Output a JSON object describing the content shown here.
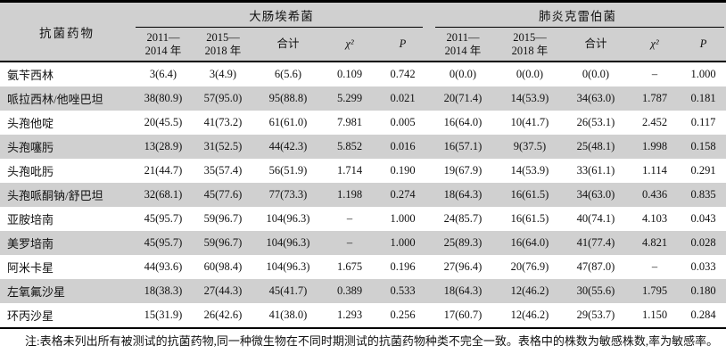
{
  "colors": {
    "stripe": "#d0d0d0",
    "border": "#000000",
    "background": "#ffffff"
  },
  "table": {
    "drug_header": "抗菌药物",
    "groups": [
      {
        "label": "大肠埃希菌"
      },
      {
        "label": "肺炎克雷伯菌"
      }
    ],
    "period_headers": [
      {
        "line1": "2011—",
        "line2": "2014 年"
      },
      {
        "line1": "2015—",
        "line2": "2018 年"
      }
    ],
    "total_header": "合计",
    "chi_header": "χ²",
    "p_header": "P",
    "rows": [
      {
        "drug": "氨苄西林",
        "ecoli": [
          "3(6.4)",
          "3(4.9)",
          "6(5.6)",
          "0.109",
          "0.742"
        ],
        "kp": [
          "0(0.0)",
          "0(0.0)",
          "0(0.0)",
          "–",
          "1.000"
        ]
      },
      {
        "drug": "哌拉西林/他唑巴坦",
        "ecoli": [
          "38(80.9)",
          "57(95.0)",
          "95(88.8)",
          "5.299",
          "0.021"
        ],
        "kp": [
          "20(71.4)",
          "14(53.9)",
          "34(63.0)",
          "1.787",
          "0.181"
        ]
      },
      {
        "drug": "头孢他啶",
        "ecoli": [
          "20(45.5)",
          "41(73.2)",
          "61(61.0)",
          "7.981",
          "0.005"
        ],
        "kp": [
          "16(64.0)",
          "10(41.7)",
          "26(53.1)",
          "2.452",
          "0.117"
        ]
      },
      {
        "drug": "头孢噻肟",
        "ecoli": [
          "13(28.9)",
          "31(52.5)",
          "44(42.3)",
          "5.852",
          "0.016"
        ],
        "kp": [
          "16(57.1)",
          "9(37.5)",
          "25(48.1)",
          "1.998",
          "0.158"
        ]
      },
      {
        "drug": "头孢吡肟",
        "ecoli": [
          "21(44.7)",
          "35(57.4)",
          "56(51.9)",
          "1.714",
          "0.190"
        ],
        "kp": [
          "19(67.9)",
          "14(53.9)",
          "33(61.1)",
          "1.114",
          "0.291"
        ]
      },
      {
        "drug": "头孢哌酮钠/舒巴坦",
        "ecoli": [
          "32(68.1)",
          "45(77.6)",
          "77(73.3)",
          "1.198",
          "0.274"
        ],
        "kp": [
          "18(64.3)",
          "16(61.5)",
          "34(63.0)",
          "0.436",
          "0.835"
        ]
      },
      {
        "drug": "亚胺培南",
        "ecoli": [
          "45(95.7)",
          "59(96.7)",
          "104(96.3)",
          "–",
          "1.000"
        ],
        "kp": [
          "24(85.7)",
          "16(61.5)",
          "40(74.1)",
          "4.103",
          "0.043"
        ]
      },
      {
        "drug": "美罗培南",
        "ecoli": [
          "45(95.7)",
          "59(96.7)",
          "104(96.3)",
          "–",
          "1.000"
        ],
        "kp": [
          "25(89.3)",
          "16(64.0)",
          "41(77.4)",
          "4.821",
          "0.028"
        ]
      },
      {
        "drug": "阿米卡星",
        "ecoli": [
          "44(93.6)",
          "60(98.4)",
          "104(96.3)",
          "1.675",
          "0.196"
        ],
        "kp": [
          "27(96.4)",
          "20(76.9)",
          "47(87.0)",
          "–",
          "0.033"
        ]
      },
      {
        "drug": "左氧氟沙星",
        "ecoli": [
          "18(38.3)",
          "27(44.3)",
          "45(41.7)",
          "0.389",
          "0.533"
        ],
        "kp": [
          "18(64.3)",
          "12(46.2)",
          "30(55.6)",
          "1.795",
          "0.180"
        ]
      },
      {
        "drug": "环丙沙星",
        "ecoli": [
          "15(31.9)",
          "26(42.6)",
          "41(38.0)",
          "1.293",
          "0.256"
        ],
        "kp": [
          "17(60.7)",
          "12(46.2)",
          "29(53.7)",
          "1.150",
          "0.284"
        ]
      }
    ]
  },
  "note": "注:表格未列出所有被测试的抗菌药物,同一种微生物在不同时期测试的抗菌药物种类不完全一致。表格中的株数为敏感株数,率为敏感率。"
}
